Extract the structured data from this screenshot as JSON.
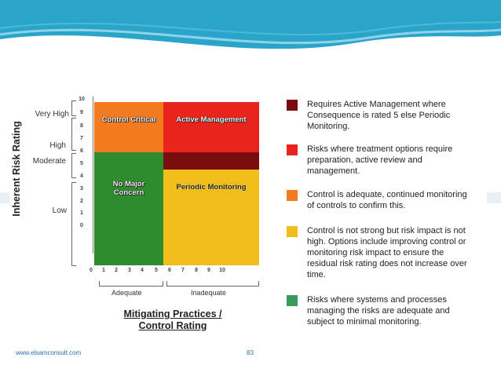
{
  "colors": {
    "banner_teal": "#2aa5c9",
    "critical_orange": "#f47a1f",
    "active_red": "#e8241c",
    "dark_red": "#7a0e0e",
    "periodic_yellow": "#f0bd1a",
    "nomajor_green": "#2e8b2e",
    "legend_green": "#3a9a5a"
  },
  "matrix": {
    "y_axis_title": "Inherent Risk Rating",
    "y_categories": [
      "Very High",
      "High",
      "Moderate",
      "Low"
    ],
    "y_ticks": [
      "10",
      "9",
      "8",
      "7",
      "6",
      "5",
      "4",
      "3",
      "2",
      "1",
      "0"
    ],
    "x_ticks": [
      "0",
      "1",
      "2",
      "3",
      "4",
      "5",
      "6",
      "7",
      "8",
      "9",
      "10"
    ],
    "x_categories": [
      "Adequate",
      "Inadequate"
    ],
    "x_axis_title_line1": "Mitigating Practices /",
    "x_axis_title_line2": "Control Rating",
    "quadrants": {
      "control_critical": "Control Critical",
      "active_management": "Active Management",
      "no_major_line1": "No Major",
      "no_major_line2": "Concern",
      "periodic_monitoring": "Periodic Monitoring"
    }
  },
  "legend": [
    {
      "color": "#7a0e0e",
      "text": "Requires Active Management where Consequence is rated 5 else Periodic Monitoring."
    },
    {
      "color": "#e8241c",
      "text": "Risks where treatment options require preparation, active review and management."
    },
    {
      "color": "#f47a1f",
      "text": "Control is adequate, continued monitoring of controls to confirm this."
    },
    {
      "color": "#f0bd1a",
      "text": "Control is not strong but risk impact is not high.  Options include improving control or monitoring risk impact to ensure the residual risk rating does not increase over time."
    },
    {
      "color": "#3a9a5a",
      "text": "Risks where systems and processes managing the risks are adequate and subject to minimal monitoring."
    }
  ],
  "footer": {
    "url": "www.elsamconsult.com",
    "page": "83"
  }
}
